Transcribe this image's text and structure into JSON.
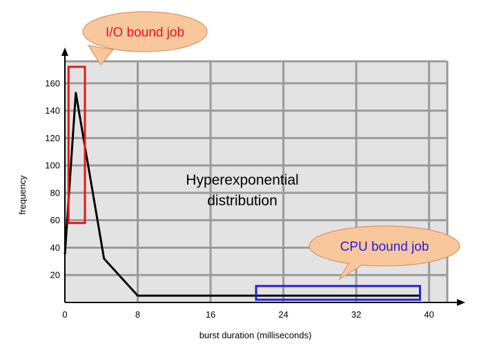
{
  "chart_data": {
    "type": "line",
    "x": [
      0,
      1.2,
      4.3,
      8,
      21,
      39
    ],
    "series": [
      {
        "values": [
          35,
          153,
          32,
          5,
          5,
          5
        ]
      }
    ],
    "xlabel": "burst duration (milliseconds)",
    "ylabel": "frequency",
    "x_ticks": [
      "0",
      "8",
      "16",
      "24",
      "32",
      "40"
    ],
    "y_ticks": [
      "20",
      "40",
      "60",
      "80",
      "100",
      "120",
      "140",
      "160"
    ],
    "xlim": [
      0,
      42
    ],
    "ylim": [
      0,
      176
    ],
    "grid": true,
    "annotations": {
      "center_line1": "Hyperexponential",
      "center_line2": "distribution",
      "io_label": "I/O bound job",
      "cpu_label": "CPU bound job"
    },
    "highlight_regions": [
      {
        "name": "io",
        "x_range": [
          0.4,
          2.2
        ],
        "y_range": [
          58,
          172
        ]
      },
      {
        "name": "cpu",
        "x_range": [
          21,
          39
        ],
        "y_range": [
          2,
          12
        ]
      }
    ],
    "colors": {
      "plot_background": "#e3e3e3",
      "grid": "#9a9a9a",
      "line": "#000000",
      "io_box": "#e8151b",
      "io_text": "#e8151b",
      "cpu_box": "#1f1fe0",
      "cpu_text": "#1f1fe0",
      "bubble_fill": "#f9c79c",
      "bubble_stroke": "#d9955f"
    }
  }
}
